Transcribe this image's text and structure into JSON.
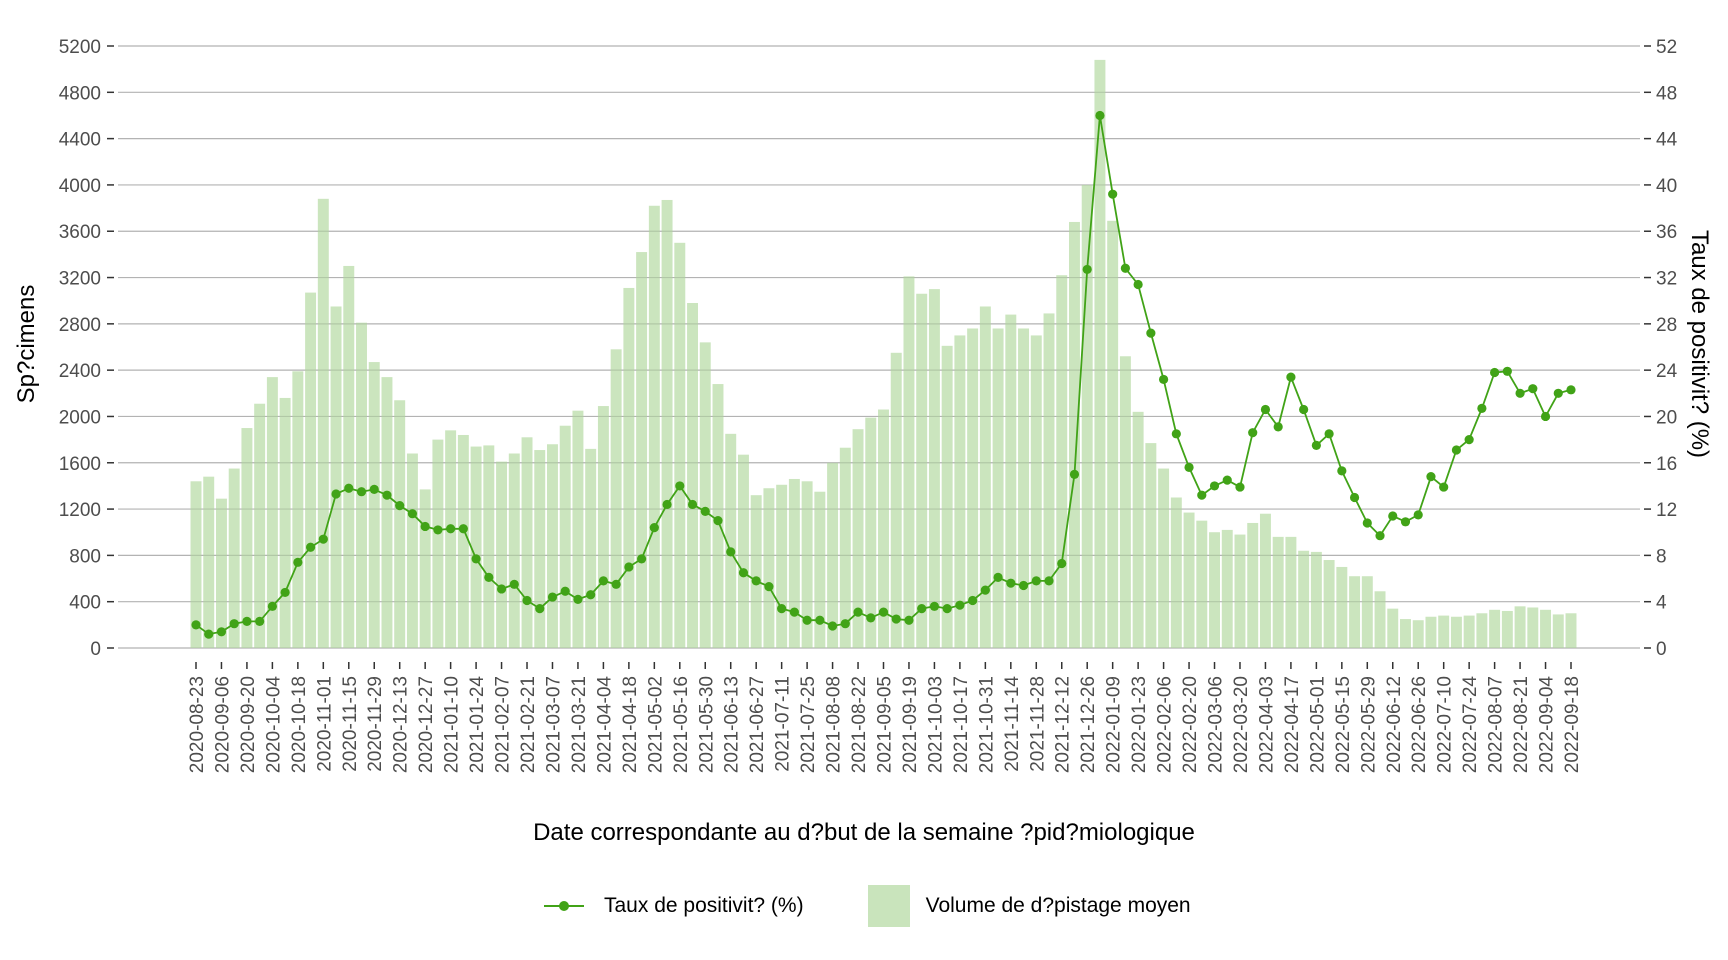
{
  "chart_data": {
    "type": "bar+line",
    "title": "",
    "xlabel": "Date correspondante au d?but de la semaine ?pid?miologique",
    "ylabel_left": "Sp?cimens",
    "ylabel_right": "Taux de positivit? (%)",
    "ylim_left": [
      0,
      5200
    ],
    "ylim_right": [
      0,
      52
    ],
    "yticks_left": [
      "0",
      "400",
      "800",
      "1200",
      "1600",
      "2000",
      "2400",
      "2800",
      "3200",
      "3600",
      "4000",
      "4400",
      "4800",
      "5200"
    ],
    "yticks_right": [
      "0",
      "4",
      "8",
      "12",
      "16",
      "20",
      "24",
      "28",
      "32",
      "36",
      "40",
      "44",
      "48",
      "52"
    ],
    "grid": true,
    "legend_position": "bottom",
    "colors": {
      "bar": "#c9e4bc",
      "line": "#41a317",
      "grid": "#cccccc",
      "tick_text": "#4d4d4d"
    },
    "x_tick_labels": [
      "2020-08-23",
      "2020-09-06",
      "2020-09-20",
      "2020-10-04",
      "2020-10-18",
      "2020-11-01",
      "2020-11-15",
      "2020-11-29",
      "2020-12-13",
      "2020-12-27",
      "2021-01-10",
      "2021-01-24",
      "2021-02-07",
      "2021-02-21",
      "2021-03-07",
      "2021-03-21",
      "2021-04-04",
      "2021-04-18",
      "2021-05-02",
      "2021-05-16",
      "2021-05-30",
      "2021-06-13",
      "2021-06-27",
      "2021-07-11",
      "2021-07-25",
      "2021-08-08",
      "2021-08-22",
      "2021-09-05",
      "2021-09-19",
      "2021-10-03",
      "2021-10-17",
      "2021-10-31",
      "2021-11-14",
      "2021-11-28",
      "2021-12-12",
      "2021-12-26",
      "2022-01-09",
      "2022-01-23",
      "2022-02-06",
      "2022-02-20",
      "2022-03-06",
      "2022-03-20",
      "2022-04-03",
      "2022-04-17",
      "2022-05-01",
      "2022-05-15",
      "2022-05-29",
      "2022-06-12",
      "2022-06-26",
      "2022-07-10",
      "2022-07-24",
      "2022-08-07",
      "2022-08-21",
      "2022-09-04",
      "2022-09-18"
    ],
    "x_start": "2020-08-23",
    "x_interval_days": 7,
    "series": [
      {
        "name": "Volume de d?pistage moyen",
        "type": "bar",
        "axis": "left",
        "values": [
          1440,
          1480,
          1290,
          1550,
          1900,
          2110,
          2340,
          2160,
          2390,
          3070,
          3880,
          2950,
          3300,
          2810,
          2470,
          2340,
          2140,
          1680,
          1370,
          1800,
          1880,
          1840,
          1740,
          1750,
          1610,
          1680,
          1820,
          1710,
          1760,
          1920,
          2050,
          1720,
          2090,
          2580,
          3110,
          3420,
          3820,
          3870,
          3500,
          2980,
          2640,
          2280,
          1850,
          1670,
          1320,
          1380,
          1410,
          1460,
          1440,
          1350,
          1600,
          1730,
          1890,
          1990,
          2060,
          2550,
          3210,
          3060,
          3100,
          2610,
          2700,
          2760,
          2950,
          2760,
          2880,
          2760,
          2700,
          2890,
          3220,
          3680,
          4000,
          5080,
          3690,
          2520,
          2040,
          1770,
          1550,
          1300,
          1170,
          1100,
          1000,
          1020,
          980,
          1080,
          1160,
          960,
          960,
          840,
          830,
          760,
          700,
          620,
          620,
          490,
          340,
          250,
          240,
          270,
          280,
          270,
          280,
          300,
          330,
          320,
          360,
          350,
          330,
          290,
          300
        ]
      },
      {
        "name": "Taux de positivit? (%)",
        "type": "line",
        "axis": "right",
        "values": [
          2.0,
          1.2,
          1.4,
          2.1,
          2.3,
          2.3,
          3.6,
          4.8,
          7.4,
          8.7,
          9.4,
          13.3,
          13.8,
          13.5,
          13.7,
          13.2,
          12.3,
          11.6,
          10.5,
          10.2,
          10.3,
          10.3,
          7.7,
          6.1,
          5.1,
          5.5,
          4.1,
          3.4,
          4.4,
          4.9,
          4.2,
          4.6,
          5.8,
          5.5,
          7.0,
          7.7,
          10.4,
          12.4,
          14.0,
          12.4,
          11.8,
          11.0,
          8.3,
          6.5,
          5.8,
          5.3,
          3.4,
          3.1,
          2.4,
          2.4,
          1.9,
          2.1,
          3.1,
          2.6,
          3.1,
          2.5,
          2.4,
          3.4,
          3.6,
          3.4,
          3.7,
          4.1,
          5.0,
          6.1,
          5.6,
          5.4,
          5.8,
          5.8,
          7.3,
          15.0,
          32.7,
          46.0,
          39.2,
          32.8,
          31.4,
          27.2,
          23.2,
          18.5,
          15.6,
          13.2,
          14.0,
          14.5,
          13.9,
          18.6,
          20.6,
          19.1,
          23.4,
          20.6,
          17.5,
          18.5,
          15.3,
          13.0,
          10.8,
          9.7,
          11.4,
          10.9,
          11.5,
          14.8,
          13.9,
          17.1,
          18.0,
          20.7,
          23.8,
          23.9,
          22.0,
          22.4,
          20.0,
          22.0,
          22.3
        ]
      }
    ]
  },
  "legend": {
    "line_label": "Taux de positivit? (%)",
    "bar_label": "Volume de d?pistage moyen"
  }
}
